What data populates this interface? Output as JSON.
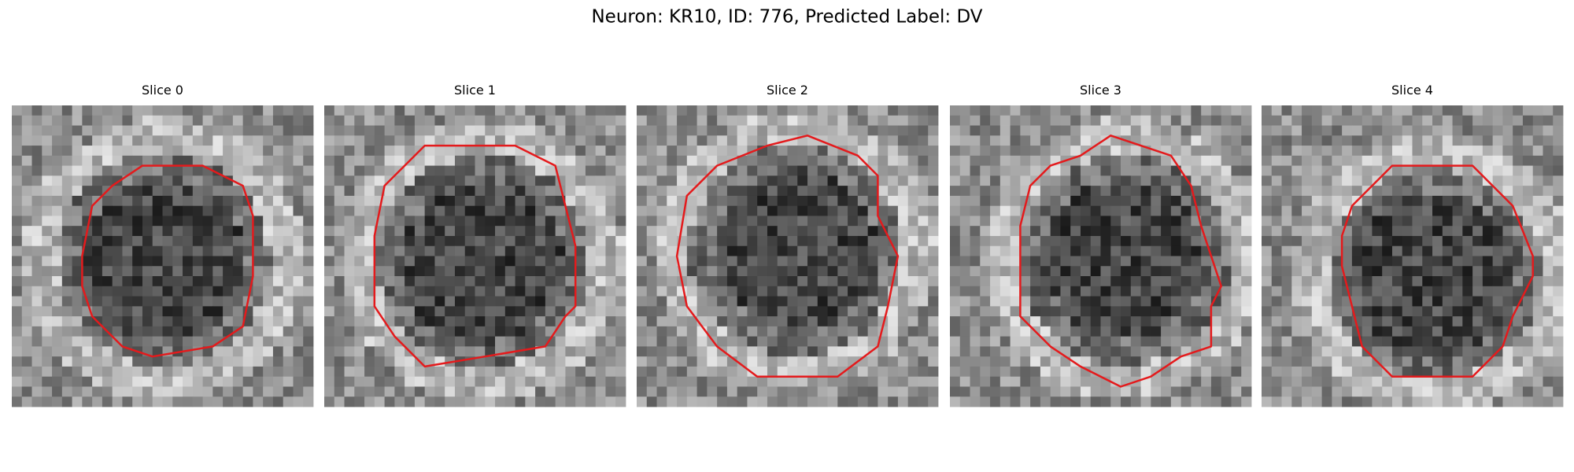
{
  "title": "Neuron: KR10, ID: 776, Predicted Label: DV",
  "panels": [
    {
      "title": "Slice 0"
    },
    {
      "title": "Slice 1"
    },
    {
      "title": "Slice 2"
    },
    {
      "title": "Slice 3"
    },
    {
      "title": "Slice 4"
    }
  ]
}
